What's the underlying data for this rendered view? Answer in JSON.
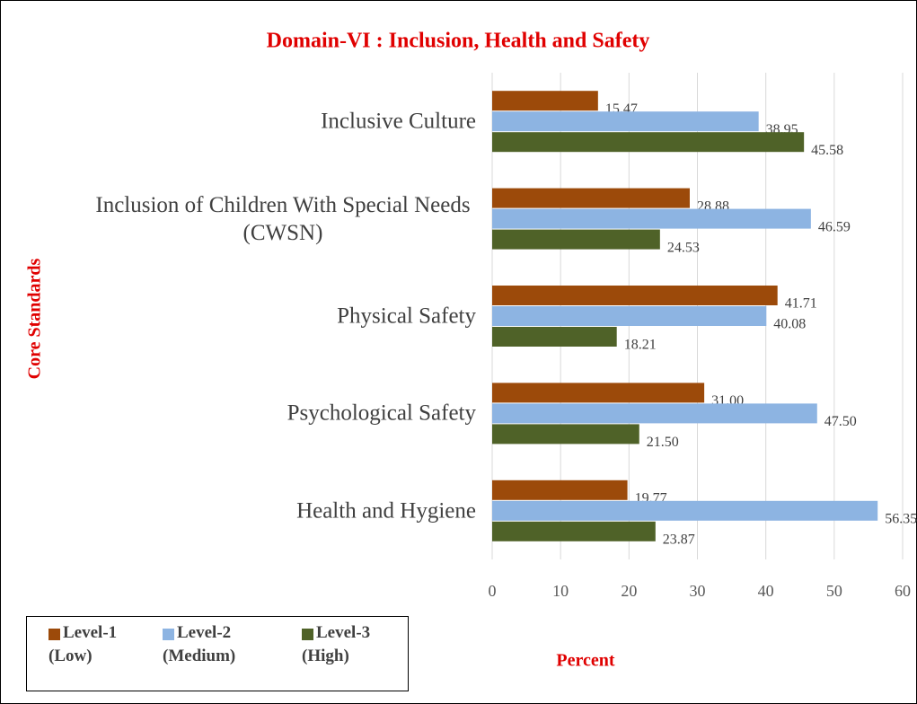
{
  "chart_data": {
    "type": "bar",
    "orientation": "horizontal",
    "title": "Domain-VI : Inclusion, Health and Safety",
    "x_label": "Percent",
    "y_label": "Core Standards",
    "categories": [
      "Inclusive Culture",
      "Inclusion of Children With Special Needs (CWSN)",
      "Physical Safety",
      "Psychological Safety",
      "Health and Hygiene"
    ],
    "series": [
      {
        "name": "Level-1 (Low)",
        "color": "#9c4a0a",
        "values": [
          15.47,
          28.88,
          41.71,
          31.0,
          19.77
        ],
        "value_labels": [
          "15.47",
          "28.88",
          "41.71",
          "31.00",
          "19.77"
        ]
      },
      {
        "name": "Level-2 (Medium)",
        "color": "#8db4e2",
        "values": [
          38.95,
          46.59,
          40.08,
          47.5,
          56.35
        ],
        "value_labels": [
          "38.95",
          "46.59",
          "40.08",
          "47.50",
          "56.35"
        ]
      },
      {
        "name": "Level-3 (High)",
        "color": "#4f6228",
        "values": [
          45.58,
          24.53,
          18.21,
          21.5,
          23.87
        ],
        "value_labels": [
          "45.58",
          "24.53",
          "18.21",
          "21.50",
          "23.87"
        ]
      }
    ],
    "xlim": [
      0,
      60
    ],
    "xticks": [
      0,
      10,
      20,
      30,
      40,
      50,
      60
    ],
    "grid": true,
    "legend": "bottom-left"
  }
}
